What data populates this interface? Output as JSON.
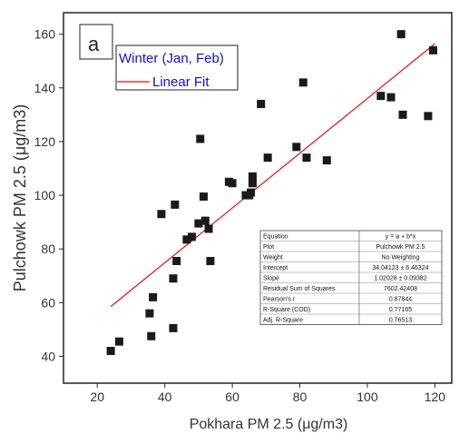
{
  "chart_data": {
    "type": "scatter",
    "panel_label": "a",
    "xlabel": "Pokhara PM 2.5 (μg/m3)",
    "ylabel": "Pulchowk PM 2.5 (μg/m3)",
    "xlim": [
      10,
      125
    ],
    "ylim": [
      30,
      168
    ],
    "xticks": [
      20,
      40,
      60,
      80,
      100,
      120
    ],
    "yticks": [
      40,
      60,
      80,
      100,
      120,
      140,
      160
    ],
    "series": [
      {
        "name": "Winter (Jan, Feb)",
        "color": "#1a1a1a",
        "marker": "square",
        "points": [
          [
            24,
            42
          ],
          [
            26.5,
            45.5
          ],
          [
            35.5,
            56
          ],
          [
            36,
            47.5
          ],
          [
            36.5,
            62
          ],
          [
            39,
            93
          ],
          [
            42.5,
            69
          ],
          [
            42.5,
            50.5
          ],
          [
            43,
            96.5
          ],
          [
            43.5,
            75.5
          ],
          [
            46.5,
            83.5
          ],
          [
            48,
            84.5
          ],
          [
            50,
            89.5
          ],
          [
            50.5,
            121
          ],
          [
            51.5,
            99.5
          ],
          [
            52,
            90.5
          ],
          [
            53,
            87.5
          ],
          [
            53.5,
            75.5
          ],
          [
            59,
            105
          ],
          [
            60,
            104.5
          ],
          [
            64,
            100
          ],
          [
            65,
            100
          ],
          [
            65.5,
            101
          ],
          [
            66,
            104.5
          ],
          [
            66,
            107
          ],
          [
            68.5,
            134
          ],
          [
            70.5,
            114
          ],
          [
            79,
            118
          ],
          [
            81,
            142
          ],
          [
            82,
            114
          ],
          [
            88,
            113
          ],
          [
            104,
            137
          ],
          [
            107,
            136.5
          ],
          [
            110,
            160
          ],
          [
            110.5,
            130
          ],
          [
            118,
            129.5
          ],
          [
            119.5,
            154
          ]
        ]
      },
      {
        "name": "Linear Fit",
        "color": "#e01010",
        "type": "line",
        "x": [
          24,
          120
        ],
        "y": [
          58.53,
          156.45
        ]
      }
    ],
    "legend": {
      "position": "top-left",
      "entries": [
        {
          "label": "Winter (Jan, Feb)",
          "color": "#1010cc"
        },
        {
          "label": "Linear Fit",
          "color": "#1010cc",
          "line_color": "#e01010"
        }
      ]
    },
    "stats_table": [
      [
        "Equation",
        "y = a + b*x"
      ],
      [
        "Plot",
        "Pulchowk PM 2.5"
      ],
      [
        "Weight",
        "No Weighting"
      ],
      [
        "Intercept",
        "34.04123 ± 6.46324"
      ],
      [
        "Slope",
        "1.02028 ± 0.09382"
      ],
      [
        "Residual Sum of Squares",
        "7602.42408"
      ],
      [
        "Pearson's r",
        "0.87844"
      ],
      [
        "R-Square (COD)",
        "0.77165"
      ],
      [
        "Adj. R-Square",
        "0.76513"
      ]
    ],
    "grid": false
  }
}
